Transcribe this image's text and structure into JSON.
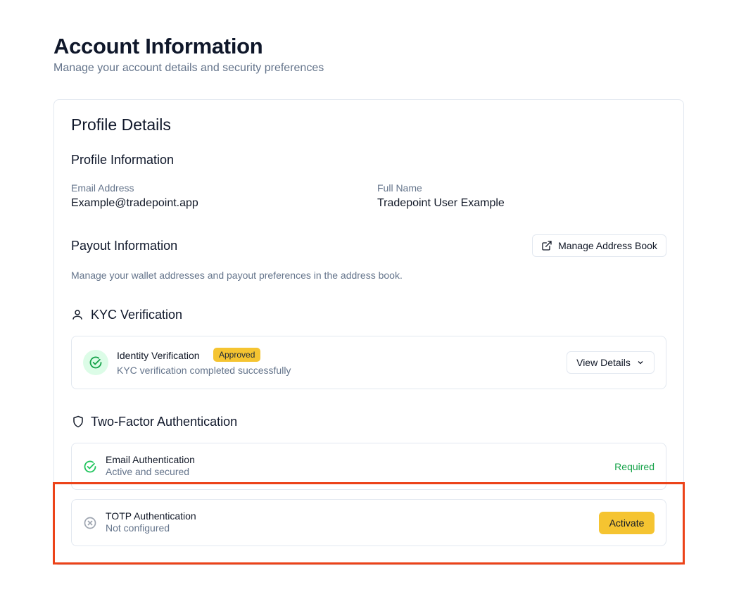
{
  "header": {
    "title": "Account Information",
    "subtitle": "Manage your account details and security preferences"
  },
  "card": {
    "title": "Profile Details",
    "profile": {
      "heading": "Profile Information",
      "email_label": "Email Address",
      "email_value": "Example@tradepoint.app",
      "name_label": "Full Name",
      "name_value": "Tradepoint User Example"
    },
    "payout": {
      "heading": "Payout Information",
      "button": "Manage Address Book",
      "button_icon": "external-link-icon",
      "description": "Manage your wallet addresses and payout preferences in the address book."
    },
    "kyc": {
      "heading": "KYC Verification",
      "icon": "user-icon",
      "item_title": "Identity Verification",
      "badge": "Approved",
      "item_desc": "KYC verification completed successfully",
      "button": "View Details"
    },
    "tfa": {
      "heading": "Two-Factor Authentication",
      "icon": "shield-icon",
      "email": {
        "title": "Email Authentication",
        "desc": "Active and secured",
        "status": "Required"
      },
      "totp": {
        "title": "TOTP Authentication",
        "desc": "Not configured",
        "button": "Activate"
      }
    }
  },
  "colors": {
    "accent": "#f5c431",
    "success": "#16a34a",
    "highlight": "#ec4319"
  }
}
